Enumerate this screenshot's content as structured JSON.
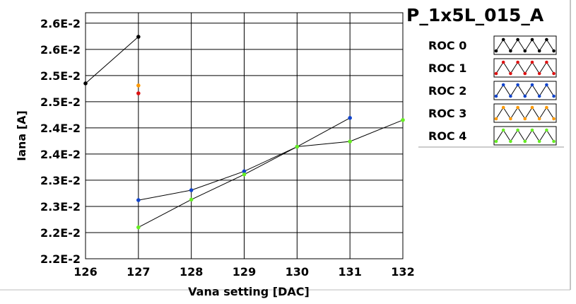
{
  "title": "P_1x5L_015_A",
  "chart_data": {
    "type": "line",
    "xlabel": "Vana setting [DAC]",
    "ylabel": "Iana [A]",
    "xlim": [
      126,
      132
    ],
    "ylim": [
      0.0221,
      0.0268
    ],
    "grid": true,
    "x_ticks": [
      "126",
      "127",
      "128",
      "129",
      "130",
      "131",
      "132"
    ],
    "y_ticks": [
      {
        "value": 0.0221,
        "label": "2.2E-2"
      },
      {
        "value": 0.0226,
        "label": "2.2E-2"
      },
      {
        "value": 0.0231,
        "label": "2.3E-2"
      },
      {
        "value": 0.0236,
        "label": "2.3E-2"
      },
      {
        "value": 0.0241,
        "label": "2.4E-2"
      },
      {
        "value": 0.0246,
        "label": "2.4E-2"
      },
      {
        "value": 0.0251,
        "label": "2.5E-2"
      },
      {
        "value": 0.0256,
        "label": "2.5E-2"
      },
      {
        "value": 0.0261,
        "label": "2.6E-2"
      },
      {
        "value": 0.0266,
        "label": "2.6E-2"
      }
    ],
    "legend_position": "right",
    "series": [
      {
        "name": "ROC 0",
        "color": "#000000",
        "line": true,
        "x": [
          126,
          127
        ],
        "y": [
          0.02545,
          0.02634
        ]
      },
      {
        "name": "ROC 1",
        "color": "#dd1111",
        "line": false,
        "x": [
          127
        ],
        "y": [
          0.02526
        ]
      },
      {
        "name": "ROC 2",
        "color": "#1144cc",
        "line": true,
        "x": [
          127,
          128,
          129,
          130,
          131
        ],
        "y": [
          0.02322,
          0.02341,
          0.02377,
          0.02424,
          0.02479
        ]
      },
      {
        "name": "ROC 3",
        "color": "#ff9900",
        "line": false,
        "x": [
          127
        ],
        "y": [
          0.02541
        ]
      },
      {
        "name": "ROC 4",
        "color": "#66ee22",
        "line": true,
        "x": [
          127,
          128,
          129,
          130,
          131,
          132
        ],
        "y": [
          0.0227,
          0.02323,
          0.02371,
          0.02424,
          0.02434,
          0.02475
        ]
      }
    ]
  }
}
